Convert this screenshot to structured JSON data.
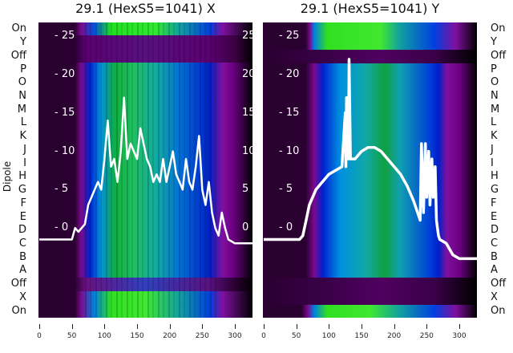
{
  "chart_data": {
    "type": "heatmap",
    "ylabel": "Dipole",
    "row_labels": [
      "On",
      "Y",
      "Off",
      "P",
      "O",
      "N",
      "M",
      "L",
      "K",
      "J",
      "I",
      "H",
      "G",
      "F",
      "E",
      "D",
      "C",
      "B",
      "A",
      "Off",
      "X",
      "On"
    ],
    "xticks": [
      0,
      50,
      100,
      150,
      200,
      250,
      300
    ],
    "yticks": [
      0,
      5,
      10,
      15,
      20,
      25
    ],
    "xlim": [
      0,
      327
    ],
    "ylim": [
      -11.7,
      26.8
    ],
    "line_color": "#ffffff",
    "panels": [
      {
        "title": "29.1 (HexS5=1041) X",
        "line": {
          "x": [
            0,
            50,
            55,
            60,
            70,
            75,
            80,
            85,
            90,
            95,
            100,
            105,
            110,
            115,
            120,
            125,
            130,
            135,
            140,
            145,
            150,
            155,
            160,
            165,
            170,
            175,
            180,
            185,
            190,
            195,
            200,
            205,
            210,
            215,
            220,
            225,
            230,
            235,
            240,
            245,
            250,
            255,
            260,
            265,
            270,
            275,
            280,
            285,
            290,
            300,
            327
          ],
          "y": [
            -1.5,
            -1.5,
            0,
            -0.5,
            0.5,
            3,
            4,
            5,
            6,
            5,
            9,
            14,
            8,
            9,
            6,
            10,
            17,
            9,
            11,
            10,
            9,
            13,
            11,
            9,
            8,
            6,
            7,
            6,
            9,
            6,
            8,
            10,
            7,
            6,
            5,
            9,
            6,
            5,
            8,
            12,
            5,
            3,
            6,
            2,
            0,
            -1,
            2,
            0,
            -1.5,
            -2,
            -2
          ]
        }
      },
      {
        "title": "29.1 (HexS5=1041) Y",
        "line": {
          "x": [
            0,
            55,
            60,
            65,
            70,
            80,
            90,
            100,
            110,
            120,
            125,
            126,
            127,
            130,
            131,
            133,
            134,
            140,
            150,
            160,
            170,
            180,
            190,
            200,
            210,
            220,
            230,
            240,
            242,
            245,
            248,
            250,
            253,
            255,
            258,
            260,
            263,
            265,
            268,
            270,
            280,
            290,
            300,
            327
          ],
          "y": [
            -1.5,
            -1.5,
            -1,
            1,
            3,
            5,
            6,
            7,
            7.5,
            8,
            15,
            8,
            17,
            9,
            22,
            9,
            9,
            9,
            10,
            10.5,
            10.5,
            10,
            9,
            8,
            7,
            5.5,
            3.5,
            1,
            11,
            2,
            11,
            4,
            10,
            3,
            9,
            4,
            8,
            1,
            -1,
            -1.5,
            -2,
            -3.5,
            -4,
            -4
          ]
        }
      }
    ]
  }
}
